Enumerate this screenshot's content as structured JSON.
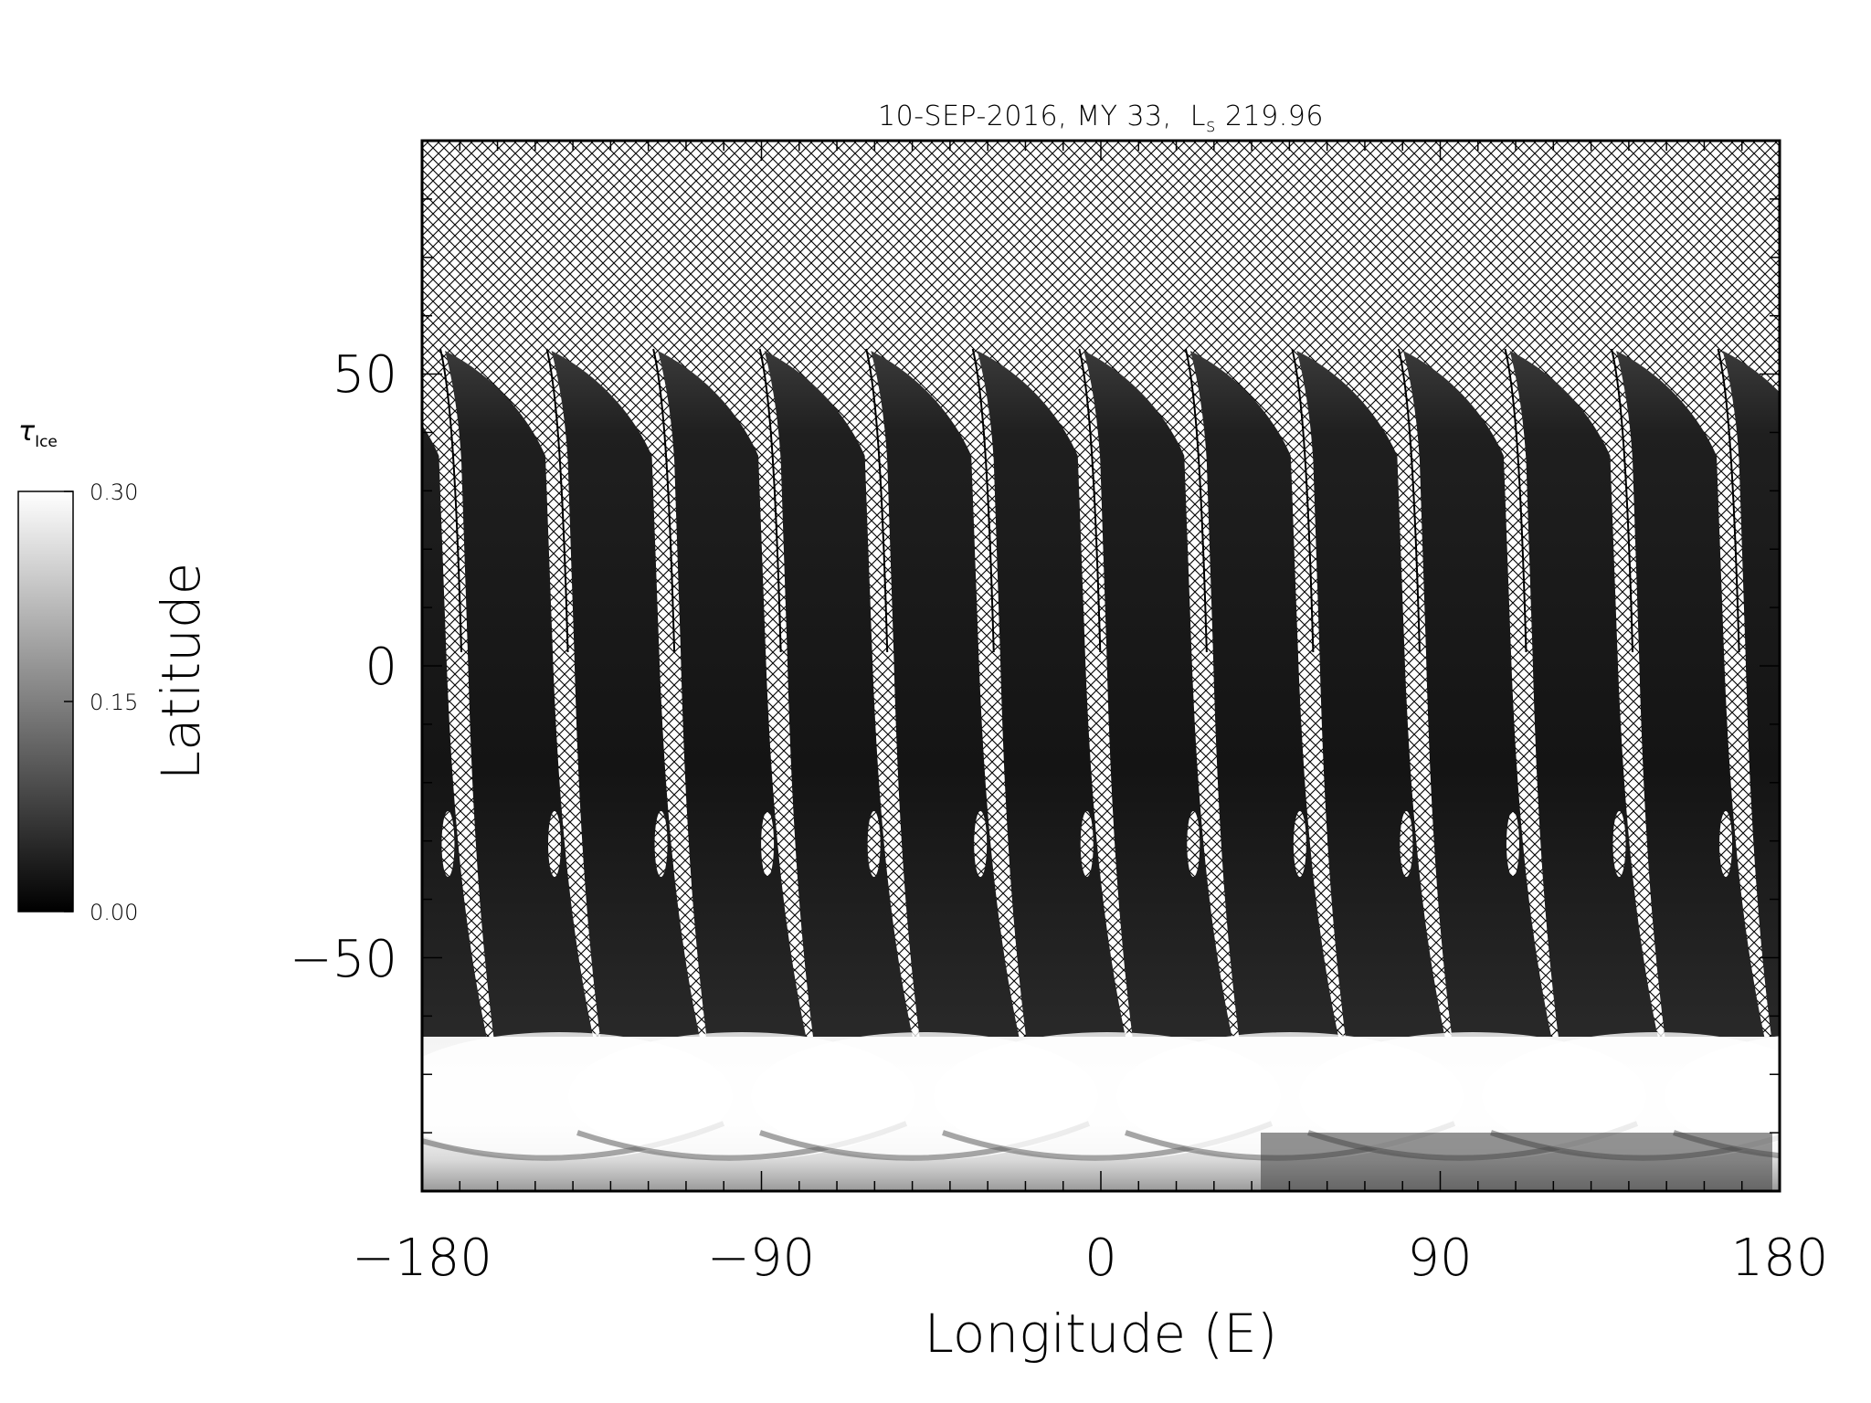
{
  "chart_data": {
    "type": "heatmap",
    "title": "10-SEP-2016, MY 33,",
    "title_ls_symbol": "L",
    "title_ls_sub": "s",
    "title_ls_value": "219.96",
    "xlabel": "Longitude (E)",
    "ylabel": "Latitude",
    "xlim": [
      -180,
      180
    ],
    "ylim": [
      -90,
      90
    ],
    "xticks": [
      -180,
      -90,
      0,
      90,
      180
    ],
    "xtick_labels": [
      "−180",
      "−90",
      "0",
      "90",
      "180"
    ],
    "yticks": [
      -50,
      0,
      50
    ],
    "ytick_labels": [
      "−50",
      "0",
      "50"
    ],
    "colorbar": {
      "label_symbol": "τ",
      "label_sub": "Ice",
      "min": 0.0,
      "max": 0.3,
      "ticks": [
        0.0,
        0.15,
        0.3
      ],
      "tick_labels": [
        "0.00",
        "0.15",
        "0.30"
      ]
    },
    "swaths": {
      "count": 13,
      "northern_edge_lat": 54,
      "southern_polar_hood_lat": -64,
      "ice_values": {
        "midlatitudes": 0.02,
        "southern_polar_hood": 0.3
      }
    },
    "no_data_pattern": "crosshatch"
  },
  "colors": {
    "background": "#ffffff",
    "axis": "#000000",
    "nodata_line": "#000000"
  }
}
